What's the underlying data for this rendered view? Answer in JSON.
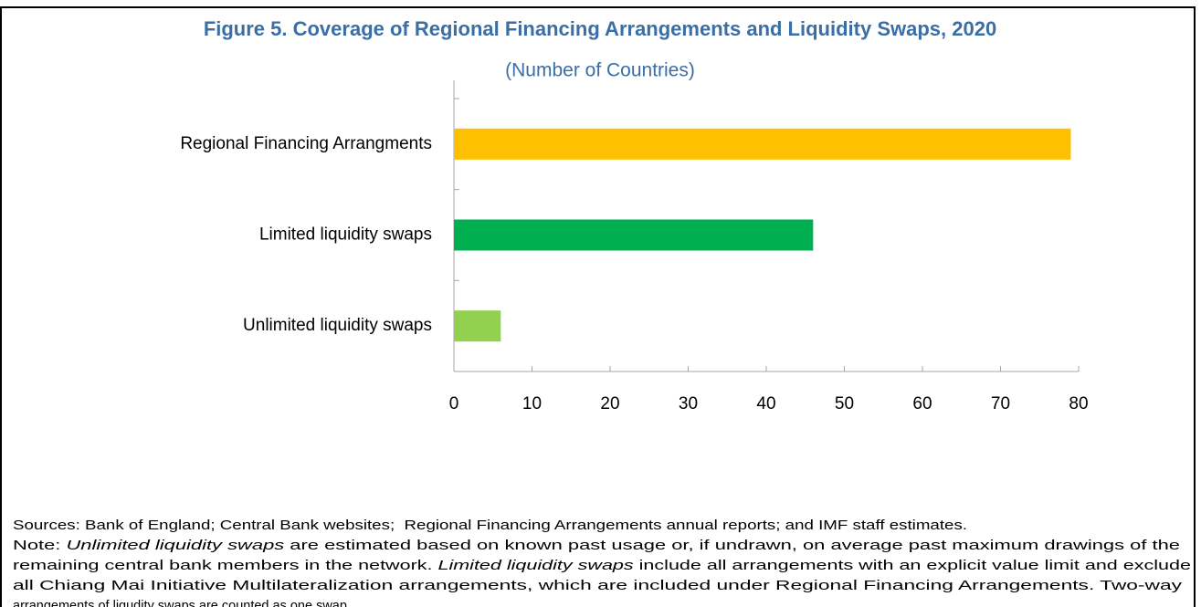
{
  "chart_data": {
    "type": "bar",
    "orientation": "horizontal",
    "title": "Figure 5. Coverage of Regional Financing Arrangements and Liquidity Swaps, 2020",
    "subtitle": "(Number of Countries)",
    "categories": [
      "Regional Financing Arrangments",
      "Limited liquidity swaps",
      "Unlimited liquidity swaps"
    ],
    "values": [
      79,
      46,
      6
    ],
    "colors": [
      "#ffc000",
      "#00b050",
      "#92d050"
    ],
    "xlim": [
      0,
      80
    ],
    "xticks": [
      0,
      10,
      20,
      30,
      40,
      50,
      60,
      70,
      80
    ],
    "grid": false
  },
  "footnotes": {
    "sources": "Sources: Bank of England; Central Bank websites;  Regional Financing Arrangements annual reports; and IMF staff estimates.",
    "note_lines": [
      [
        {
          "text": "Note: ",
          "italic": false
        },
        {
          "text": "Unlimited liquidity swaps",
          "italic": true
        },
        {
          "text": " are estimated based on known past usage or, if undrawn, on average past maximum drawings of the",
          "italic": false
        }
      ],
      [
        {
          "text": "remaining central bank members in the network. ",
          "italic": false
        },
        {
          "text": "Limited liquidity swaps",
          "italic": true
        },
        {
          "text": " include all arrangements with an explicit value limit and exclude",
          "italic": false
        }
      ],
      [
        {
          "text": "all Chiang Mai Initiative Multilateralization arrangements, which are included under Regional Financing Arrangements. Two-way",
          "italic": false
        }
      ],
      [
        {
          "text": "arrangements of liqudity swaps are counted as one swap.",
          "italic": false
        }
      ]
    ]
  }
}
